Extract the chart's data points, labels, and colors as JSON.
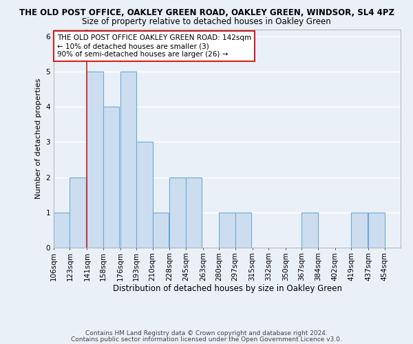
{
  "title1": "THE OLD POST OFFICE, OAKLEY GREEN ROAD, OAKLEY GREEN, WINDSOR, SL4 4PZ",
  "title2": "Size of property relative to detached houses in Oakley Green",
  "xlabel": "Distribution of detached houses by size in Oakley Green",
  "ylabel": "Number of detached properties",
  "footer1": "Contains HM Land Registry data © Crown copyright and database right 2024.",
  "footer2": "Contains public sector information licensed under the Open Government Licence v3.0.",
  "annotation_line1": "THE OLD POST OFFICE OAKLEY GREEN ROAD: 142sqm",
  "annotation_line2": "← 10% of detached houses are smaller (3)",
  "annotation_line3": "90% of semi-detached houses are larger (26) →",
  "bar_color": "#ccddf0",
  "bar_edge_color": "#6aaad4",
  "redline_color": "#cc2222",
  "redline_x": 141,
  "categories": [
    "106sqm",
    "123sqm",
    "141sqm",
    "158sqm",
    "176sqm",
    "193sqm",
    "210sqm",
    "228sqm",
    "245sqm",
    "263sqm",
    "280sqm",
    "297sqm",
    "315sqm",
    "332sqm",
    "350sqm",
    "367sqm",
    "384sqm",
    "402sqm",
    "419sqm",
    "437sqm",
    "454sqm"
  ],
  "bin_edges": [
    106,
    123,
    141,
    158,
    176,
    193,
    210,
    228,
    245,
    263,
    280,
    297,
    315,
    332,
    350,
    367,
    384,
    402,
    419,
    437,
    454
  ],
  "bin_width": 17,
  "values": [
    1,
    2,
    5,
    4,
    5,
    3,
    1,
    2,
    2,
    0,
    1,
    1,
    0,
    0,
    0,
    1,
    0,
    0,
    1,
    1,
    0
  ],
  "ylim": [
    0,
    6.2
  ],
  "yticks": [
    0,
    1,
    2,
    3,
    4,
    5,
    6
  ],
  "background_color": "#eaf0f8",
  "grid_color": "#ffffff",
  "annotation_box_color": "#ffffff",
  "annotation_box_edge": "#cc2222",
  "title1_fontsize": 8.5,
  "title2_fontsize": 8.5,
  "xlabel_fontsize": 8.5,
  "ylabel_fontsize": 8.0,
  "tick_fontsize": 7.5,
  "annotation_fontsize": 7.5,
  "footer_fontsize": 6.5
}
